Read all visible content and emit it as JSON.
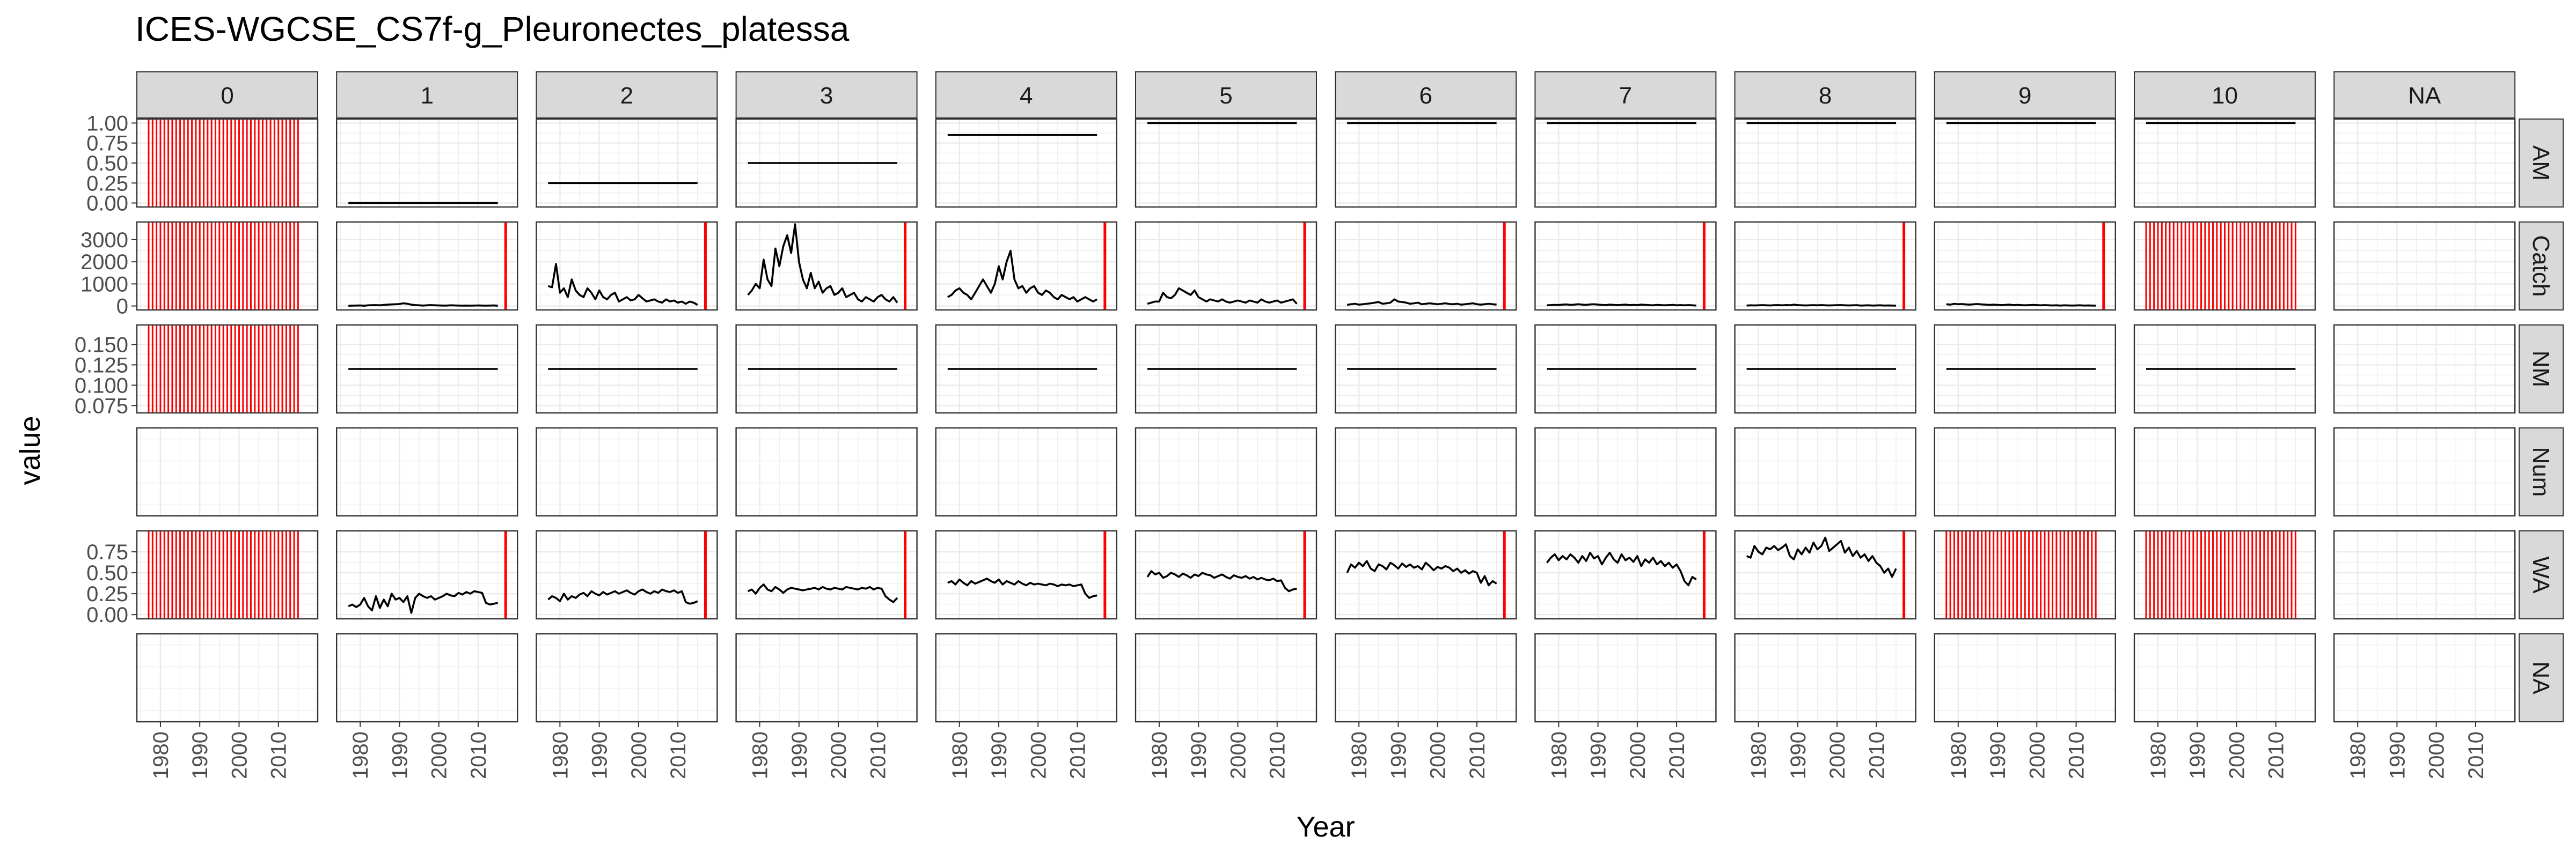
{
  "chart_data": {
    "type": "line",
    "title": "ICES-WGCSE_CS7f-g_Pleuronectes_platessa",
    "xlabel": "Year",
    "ylabel": "value",
    "facet_cols": [
      "0",
      "1",
      "2",
      "3",
      "4",
      "5",
      "6",
      "7",
      "8",
      "9",
      "10",
      "NA"
    ],
    "facet_rows": [
      "AM",
      "Catch",
      "NM",
      "Num",
      "WA",
      "NA"
    ],
    "x_ticks": [
      1980,
      1990,
      2000,
      2010
    ],
    "xlim": [
      1974,
      2020
    ],
    "grid": true,
    "colors": {
      "line": "#000000",
      "missing": "#ff0000",
      "strip_fill": "#d9d9d9",
      "grid": "#ebebeb",
      "panel_border": "#333333"
    },
    "rows": {
      "AM": {
        "yticks": [
          "0.00",
          "0.25",
          "0.50",
          "0.75",
          "1.00"
        ],
        "ylim": [
          -0.05,
          1.05
        ],
        "series": {
          "1": {
            "y": 0
          },
          "2": {
            "y": 0.25
          },
          "3": {
            "y": 0.5
          },
          "4": {
            "y": 0.85
          },
          "5": {
            "y": 1
          },
          "6": {
            "y": 1
          },
          "7": {
            "y": 1
          },
          "8": {
            "y": 1
          },
          "9": {
            "y": 1
          },
          "10": {
            "y": 1
          }
        },
        "missing_all": [
          "0"
        ],
        "missing_last": []
      },
      "Catch": {
        "yticks": [
          "0",
          "1000",
          "2000",
          "3000"
        ],
        "ylim": [
          -180,
          3800
        ],
        "series": {
          "1": {
            "y0": 1977,
            "values": [
              10,
              15,
              20,
              25,
              10,
              30,
              35,
              40,
              30,
              50,
              60,
              70,
              80,
              90,
              120,
              100,
              60,
              40,
              30,
              20,
              30,
              40,
              30,
              25,
              20,
              20,
              30,
              25,
              20,
              15,
              20,
              15,
              20,
              25,
              20,
              15,
              20,
              25,
              10
            ]
          },
          "2": {
            "y0": 1977,
            "values": [
              900,
              850,
              1900,
              600,
              800,
              400,
              1200,
              700,
              500,
              400,
              800,
              600,
              300,
              700,
              400,
              300,
              500,
              600,
              200,
              300,
              400,
              250,
              300,
              500,
              350,
              200,
              250,
              300,
              200,
              150,
              300,
              200,
              250,
              150,
              200,
              100,
              200,
              150,
              50
            ]
          },
          "3": {
            "y0": 1977,
            "values": [
              500,
              700,
              1000,
              800,
              2100,
              1200,
              900,
              2600,
              1800,
              2700,
              3200,
              2400,
              3700,
              2000,
              1200,
              800,
              1500,
              800,
              1100,
              600,
              800,
              900,
              500,
              600,
              800,
              400,
              500,
              600,
              300,
              200,
              400,
              300,
              200,
              400,
              500,
              300,
              200,
              400,
              150
            ]
          },
          "4": {
            "y0": 1977,
            "values": [
              400,
              500,
              700,
              800,
              600,
              500,
              300,
              600,
              900,
              1200,
              900,
              600,
              1000,
              1800,
              1200,
              2000,
              2500,
              1200,
              800,
              900,
              600,
              800,
              900,
              600,
              500,
              700,
              600,
              400,
              300,
              500,
              400,
              300,
              400,
              200,
              300,
              400,
              300,
              200,
              300
            ]
          },
          "5": {
            "y0": 1977,
            "values": [
              100,
              150,
              200,
              200,
              600,
              400,
              350,
              500,
              800,
              700,
              600,
              500,
              700,
              400,
              300,
              200,
              300,
              250,
              200,
              300,
              200,
              150,
              200,
              250,
              200,
              150,
              250,
              200,
              150,
              300,
              200,
              150,
              200,
              250,
              150,
              200,
              250,
              300,
              100
            ]
          },
          "6": {
            "y0": 1977,
            "values": [
              50,
              80,
              100,
              60,
              80,
              100,
              120,
              150,
              180,
              100,
              120,
              150,
              300,
              200,
              180,
              150,
              100,
              120,
              150,
              80,
              100,
              120,
              100,
              80,
              100,
              120,
              90,
              80,
              100,
              60,
              80,
              100,
              120,
              80,
              60,
              80,
              100,
              80,
              60
            ]
          },
          "7": {
            "y0": 1977,
            "values": [
              30,
              40,
              50,
              45,
              60,
              70,
              50,
              60,
              80,
              60,
              50,
              70,
              80,
              60,
              50,
              40,
              60,
              50,
              40,
              50,
              60,
              40,
              50,
              40,
              60,
              50,
              40,
              30,
              50,
              40,
              30,
              40,
              50,
              30,
              40,
              30,
              40,
              30,
              20
            ]
          },
          "8": {
            "y0": 1977,
            "values": [
              20,
              30,
              25,
              30,
              40,
              30,
              25,
              35,
              40,
              30,
              40,
              35,
              60,
              40,
              30,
              25,
              30,
              35,
              30,
              40,
              30,
              25,
              30,
              35,
              40,
              30,
              25,
              30,
              35,
              20,
              25,
              30,
              20,
              25,
              30,
              20,
              25,
              20,
              15
            ]
          },
          "9": {
            "y0": 1977,
            "values": [
              80,
              60,
              100,
              80,
              90,
              70,
              60,
              80,
              90,
              70,
              60,
              50,
              60,
              50,
              40,
              50,
              60,
              40,
              50,
              40,
              30,
              40,
              50,
              40,
              30,
              40,
              30,
              25,
              30,
              20,
              30,
              25,
              20,
              25,
              30,
              20,
              25,
              20,
              15
            ]
          }
        },
        "missing_all": [
          "0",
          "10"
        ],
        "missing_last": [
          "1",
          "2",
          "3",
          "4",
          "5",
          "6",
          "7",
          "8",
          "9"
        ]
      },
      "NM": {
        "yticks": [
          "0.075",
          "0.100",
          "0.125",
          "0.150"
        ],
        "ylim": [
          0.066,
          0.174
        ],
        "series": {
          "1": {
            "y": 0.12
          },
          "2": {
            "y": 0.12
          },
          "3": {
            "y": 0.12
          },
          "4": {
            "y": 0.12
          },
          "5": {
            "y": 0.12
          },
          "6": {
            "y": 0.12
          },
          "7": {
            "y": 0.12
          },
          "8": {
            "y": 0.12
          },
          "9": {
            "y": 0.12
          },
          "10": {
            "y": 0.12
          }
        },
        "missing_all": [
          "0"
        ],
        "missing_last": []
      },
      "Num": {
        "yticks": [],
        "ylim": [
          0,
          1
        ],
        "series": {},
        "missing_all": [],
        "missing_last": []
      },
      "WA": {
        "yticks": [
          "0.00",
          "0.25",
          "0.50",
          "0.75"
        ],
        "ylim": [
          -0.05,
          1.0
        ],
        "series": {
          "1": {
            "y0": 1977,
            "values": [
              0.1,
              0.12,
              0.09,
              0.12,
              0.2,
              0.1,
              0.05,
              0.22,
              0.08,
              0.18,
              0.1,
              0.25,
              0.18,
              0.2,
              0.15,
              0.22,
              0.02,
              0.2,
              0.25,
              0.22,
              0.2,
              0.22,
              0.18,
              0.2,
              0.22,
              0.25,
              0.23,
              0.22,
              0.26,
              0.24,
              0.27,
              0.25,
              0.28,
              0.27,
              0.26,
              0.14,
              0.12,
              0.13,
              0.14
            ]
          },
          "2": {
            "y0": 1977,
            "values": [
              0.18,
              0.22,
              0.2,
              0.16,
              0.25,
              0.18,
              0.22,
              0.2,
              0.24,
              0.26,
              0.22,
              0.28,
              0.25,
              0.23,
              0.27,
              0.24,
              0.26,
              0.28,
              0.25,
              0.27,
              0.29,
              0.26,
              0.24,
              0.28,
              0.3,
              0.27,
              0.25,
              0.28,
              0.26,
              0.3,
              0.28,
              0.27,
              0.29,
              0.26,
              0.28,
              0.15,
              0.13,
              0.14,
              0.16
            ]
          },
          "3": {
            "y0": 1977,
            "values": [
              0.28,
              0.3,
              0.25,
              0.32,
              0.36,
              0.3,
              0.28,
              0.33,
              0.3,
              0.26,
              0.3,
              0.32,
              0.31,
              0.3,
              0.29,
              0.3,
              0.31,
              0.32,
              0.3,
              0.33,
              0.31,
              0.3,
              0.32,
              0.31,
              0.3,
              0.33,
              0.32,
              0.31,
              0.3,
              0.32,
              0.31,
              0.33,
              0.3,
              0.32,
              0.31,
              0.22,
              0.18,
              0.15,
              0.2
            ]
          },
          "4": {
            "y0": 1977,
            "values": [
              0.38,
              0.4,
              0.36,
              0.42,
              0.38,
              0.35,
              0.4,
              0.37,
              0.39,
              0.41,
              0.43,
              0.4,
              0.38,
              0.42,
              0.36,
              0.4,
              0.38,
              0.36,
              0.4,
              0.37,
              0.35,
              0.38,
              0.36,
              0.37,
              0.36,
              0.35,
              0.37,
              0.36,
              0.34,
              0.36,
              0.35,
              0.36,
              0.34,
              0.35,
              0.36,
              0.25,
              0.2,
              0.22,
              0.23
            ]
          },
          "5": {
            "y0": 1977,
            "values": [
              0.45,
              0.52,
              0.48,
              0.5,
              0.44,
              0.46,
              0.5,
              0.48,
              0.45,
              0.49,
              0.47,
              0.44,
              0.48,
              0.46,
              0.5,
              0.48,
              0.47,
              0.44,
              0.46,
              0.48,
              0.45,
              0.43,
              0.47,
              0.45,
              0.44,
              0.46,
              0.43,
              0.45,
              0.42,
              0.44,
              0.42,
              0.41,
              0.43,
              0.4,
              0.41,
              0.32,
              0.28,
              0.3,
              0.31
            ]
          },
          "6": {
            "y0": 1977,
            "values": [
              0.5,
              0.6,
              0.56,
              0.62,
              0.58,
              0.64,
              0.55,
              0.52,
              0.6,
              0.58,
              0.54,
              0.62,
              0.59,
              0.55,
              0.61,
              0.57,
              0.6,
              0.56,
              0.58,
              0.54,
              0.62,
              0.58,
              0.53,
              0.57,
              0.55,
              0.58,
              0.56,
              0.52,
              0.55,
              0.5,
              0.53,
              0.49,
              0.52,
              0.5,
              0.38,
              0.46,
              0.35,
              0.4,
              0.37
            ]
          },
          "7": {
            "y0": 1977,
            "values": [
              0.62,
              0.68,
              0.72,
              0.65,
              0.7,
              0.66,
              0.72,
              0.68,
              0.62,
              0.7,
              0.64,
              0.74,
              0.67,
              0.7,
              0.6,
              0.68,
              0.74,
              0.66,
              0.62,
              0.72,
              0.65,
              0.68,
              0.63,
              0.7,
              0.58,
              0.66,
              0.62,
              0.68,
              0.6,
              0.64,
              0.58,
              0.62,
              0.56,
              0.6,
              0.52,
              0.4,
              0.35,
              0.45,
              0.42
            ]
          },
          "8": {
            "y0": 1977,
            "values": [
              0.7,
              0.68,
              0.82,
              0.75,
              0.72,
              0.8,
              0.78,
              0.82,
              0.77,
              0.8,
              0.84,
              0.7,
              0.66,
              0.78,
              0.72,
              0.8,
              0.74,
              0.86,
              0.78,
              0.82,
              0.92,
              0.76,
              0.8,
              0.84,
              0.88,
              0.74,
              0.8,
              0.7,
              0.76,
              0.68,
              0.72,
              0.64,
              0.7,
              0.62,
              0.58,
              0.5,
              0.55,
              0.45,
              0.55
            ]
          }
        },
        "missing_all": [
          "0",
          "9",
          "10"
        ],
        "missing_last": [
          "1",
          "2",
          "3",
          "4",
          "5",
          "6",
          "7",
          "8"
        ]
      },
      "NA": {
        "yticks": [],
        "ylim": [
          0,
          1
        ],
        "series": {},
        "missing_all": [],
        "missing_last": []
      }
    }
  }
}
